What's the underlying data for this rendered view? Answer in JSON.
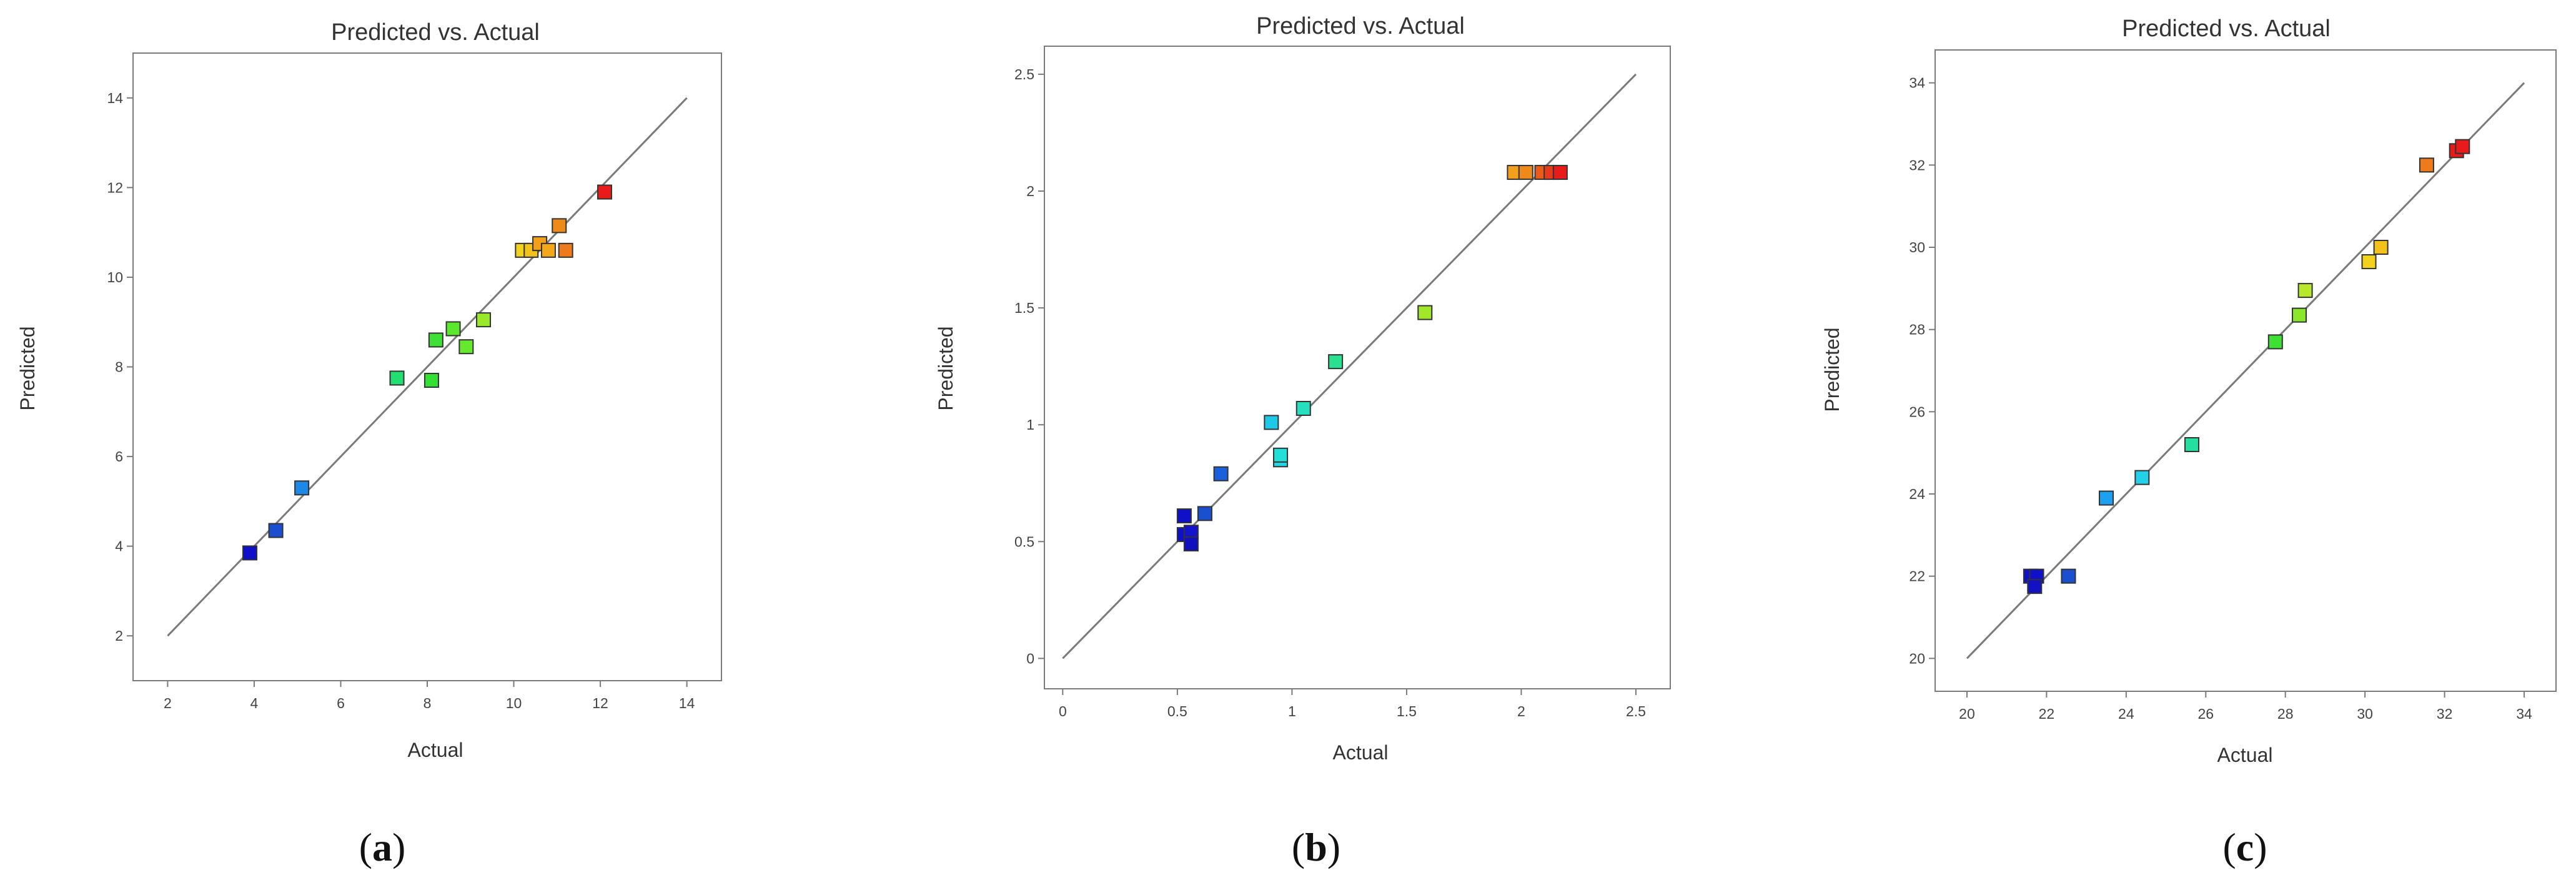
{
  "figure": {
    "panel_labels": [
      {
        "open": "(",
        "letter": "a",
        "close": ")"
      },
      {
        "open": "(",
        "letter": "b",
        "close": ")"
      },
      {
        "open": "(",
        "letter": "c",
        "close": ")"
      }
    ]
  },
  "colors": {
    "frame": "#7a7a7a",
    "diagonal": "#7a7a7a",
    "marker_outline": "#333333"
  },
  "chart_data": [
    {
      "type": "scatter",
      "title": "Predicted vs. Actual",
      "xlabel": "Actual",
      "ylabel": "Predicted",
      "xlim": [
        1.2,
        14.8
      ],
      "ylim": [
        1.0,
        15.0
      ],
      "xticks": [
        2,
        4,
        6,
        8,
        10,
        12,
        14
      ],
      "yticks": [
        2,
        4,
        6,
        8,
        10,
        12,
        14
      ],
      "reference_line": {
        "from": [
          2,
          2
        ],
        "to": [
          14,
          14
        ]
      },
      "grid": false,
      "points": [
        {
          "x": 3.9,
          "y": 3.85,
          "color": "#1010c8"
        },
        {
          "x": 4.5,
          "y": 4.35,
          "color": "#1a4fd0"
        },
        {
          "x": 5.1,
          "y": 5.3,
          "color": "#1e88e8"
        },
        {
          "x": 7.3,
          "y": 7.75,
          "color": "#22dd70"
        },
        {
          "x": 8.1,
          "y": 7.7,
          "color": "#33e033"
        },
        {
          "x": 8.2,
          "y": 8.6,
          "color": "#3ee033"
        },
        {
          "x": 8.6,
          "y": 8.85,
          "color": "#5ae82c"
        },
        {
          "x": 8.9,
          "y": 8.45,
          "color": "#66e82c"
        },
        {
          "x": 9.3,
          "y": 9.05,
          "color": "#9ae82c"
        },
        {
          "x": 10.2,
          "y": 10.6,
          "color": "#f2d21a"
        },
        {
          "x": 10.4,
          "y": 10.6,
          "color": "#f2c21a"
        },
        {
          "x": 10.6,
          "y": 10.75,
          "color": "#f2a01a"
        },
        {
          "x": 10.8,
          "y": 10.6,
          "color": "#f2a81a"
        },
        {
          "x": 11.05,
          "y": 11.15,
          "color": "#ee8a1a"
        },
        {
          "x": 11.2,
          "y": 10.6,
          "color": "#ee7a1a"
        },
        {
          "x": 12.1,
          "y": 11.9,
          "color": "#e81a1a"
        }
      ]
    },
    {
      "type": "scatter",
      "title": "Predicted vs. Actual",
      "xlabel": "Actual",
      "ylabel": "Predicted",
      "xlim": [
        -0.08,
        2.65
      ],
      "ylim": [
        -0.13,
        2.62
      ],
      "xticks": [
        0,
        0.5,
        1,
        1.5,
        2,
        2.5
      ],
      "yticks": [
        0,
        0.5,
        1,
        1.5,
        2,
        2.5
      ],
      "reference_line": {
        "from": [
          0,
          0
        ],
        "to": [
          2.5,
          2.5
        ]
      },
      "grid": false,
      "points": [
        {
          "x": 0.53,
          "y": 0.61,
          "color": "#1010c8"
        },
        {
          "x": 0.53,
          "y": 0.53,
          "color": "#1010c8"
        },
        {
          "x": 0.56,
          "y": 0.54,
          "color": "#1414cc"
        },
        {
          "x": 0.56,
          "y": 0.49,
          "color": "#1010c0"
        },
        {
          "x": 0.62,
          "y": 0.62,
          "color": "#1a4fd0"
        },
        {
          "x": 0.69,
          "y": 0.79,
          "color": "#1a60dc"
        },
        {
          "x": 0.91,
          "y": 1.01,
          "color": "#1ec8e8"
        },
        {
          "x": 0.95,
          "y": 0.85,
          "color": "#22d8e0"
        },
        {
          "x": 0.95,
          "y": 0.87,
          "color": "#22e0d8"
        },
        {
          "x": 1.05,
          "y": 1.07,
          "color": "#24e0c0"
        },
        {
          "x": 1.19,
          "y": 1.27,
          "color": "#28e090"
        },
        {
          "x": 1.58,
          "y": 1.48,
          "color": "#a0e828"
        },
        {
          "x": 1.97,
          "y": 2.08,
          "color": "#f2a01a"
        },
        {
          "x": 2.02,
          "y": 2.08,
          "color": "#ee8a1a"
        },
        {
          "x": 2.09,
          "y": 2.08,
          "color": "#ec5a1a"
        },
        {
          "x": 2.13,
          "y": 2.08,
          "color": "#e83a1a"
        },
        {
          "x": 2.17,
          "y": 2.08,
          "color": "#e81a1a"
        }
      ]
    },
    {
      "type": "scatter",
      "title": "Predicted vs. Actual",
      "xlabel": "Actual",
      "ylabel": "Predicted",
      "xlim": [
        19.2,
        34.8
      ],
      "ylim": [
        19.2,
        34.8
      ],
      "xticks": [
        20,
        22,
        24,
        26,
        28,
        30,
        32,
        34
      ],
      "yticks": [
        20,
        22,
        24,
        26,
        28,
        30,
        32,
        34
      ],
      "reference_line": {
        "from": [
          20,
          20
        ],
        "to": [
          34,
          34
        ]
      },
      "grid": false,
      "points": [
        {
          "x": 21.6,
          "y": 22.0,
          "color": "#1010c8"
        },
        {
          "x": 21.75,
          "y": 22.0,
          "color": "#1010c8"
        },
        {
          "x": 21.7,
          "y": 21.75,
          "color": "#1212c4"
        },
        {
          "x": 22.55,
          "y": 22.0,
          "color": "#1a4fd0"
        },
        {
          "x": 23.5,
          "y": 23.9,
          "color": "#1ea0f0"
        },
        {
          "x": 24.4,
          "y": 24.4,
          "color": "#22d0e8"
        },
        {
          "x": 25.65,
          "y": 25.2,
          "color": "#24e0a0"
        },
        {
          "x": 27.75,
          "y": 27.7,
          "color": "#3ee033"
        },
        {
          "x": 28.35,
          "y": 28.35,
          "color": "#88e82c"
        },
        {
          "x": 28.5,
          "y": 28.95,
          "color": "#b8e82c"
        },
        {
          "x": 30.1,
          "y": 29.65,
          "color": "#f2d21a"
        },
        {
          "x": 30.4,
          "y": 30.0,
          "color": "#f2c21a"
        },
        {
          "x": 31.55,
          "y": 32.0,
          "color": "#ee7a1a"
        },
        {
          "x": 32.3,
          "y": 32.35,
          "color": "#e81a1a"
        },
        {
          "x": 32.45,
          "y": 32.45,
          "color": "#e81a1a"
        }
      ]
    }
  ]
}
